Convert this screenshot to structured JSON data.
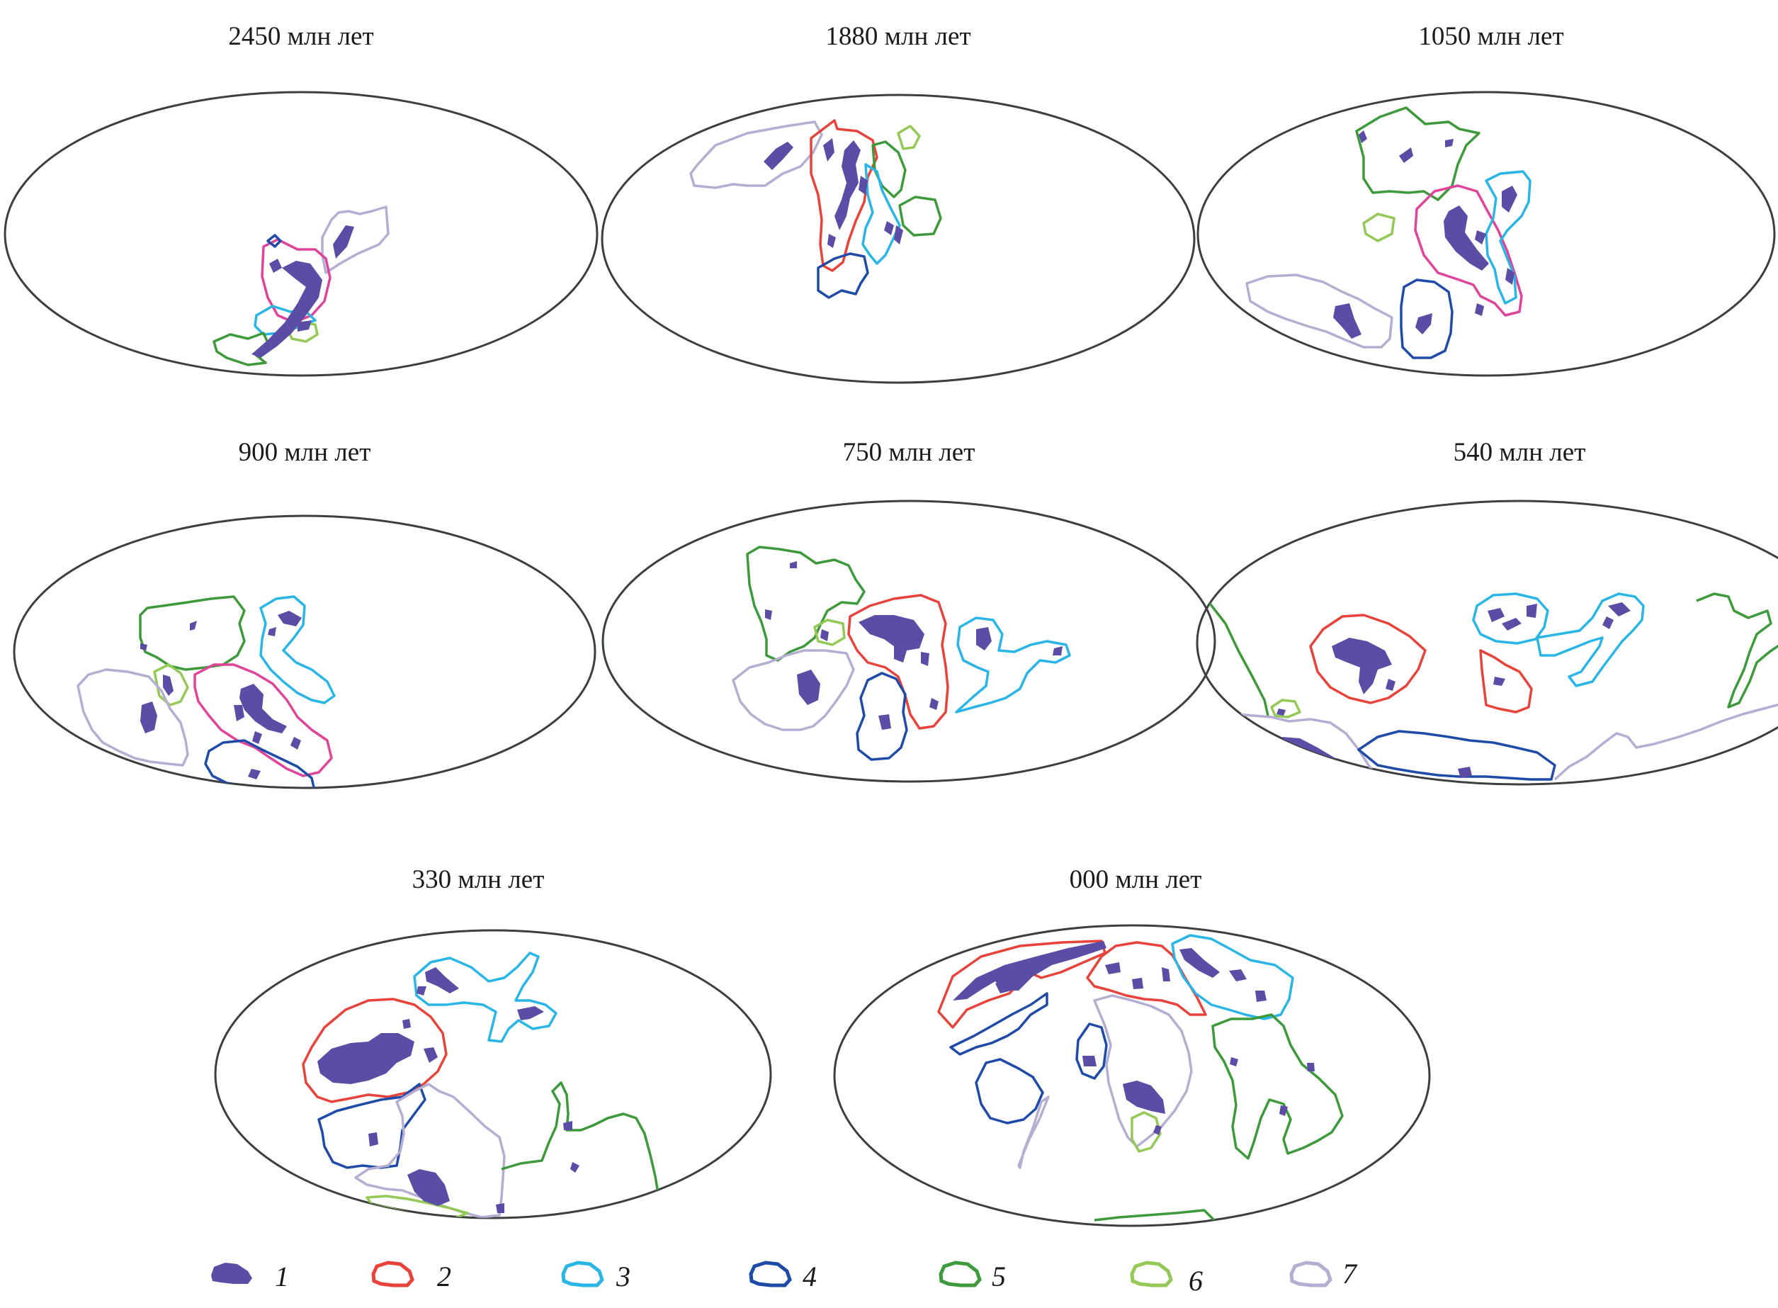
{
  "panels": [
    {
      "title": "2450 млн лет"
    },
    {
      "title": "1880 млн лет"
    },
    {
      "title": "1050 млн лет"
    },
    {
      "title": "900 млн лет"
    },
    {
      "title": "750 млн лет"
    },
    {
      "title": "540 млн лет"
    },
    {
      "title": "330 млн лет"
    },
    {
      "title": "000 млн лет"
    }
  ],
  "legend": [
    {
      "label": "1",
      "kind": "filled",
      "color": "#5b4ca6"
    },
    {
      "label": "2",
      "kind": "outline",
      "color": "#e8433b"
    },
    {
      "label": "3",
      "kind": "outline",
      "color": "#29b6e6"
    },
    {
      "label": "4",
      "kind": "outline",
      "color": "#1e4aa8"
    },
    {
      "label": "5",
      "kind": "outline",
      "color": "#3d9a3a"
    },
    {
      "label": "6",
      "kind": "outline",
      "color": "#95c955"
    },
    {
      "label": "7",
      "kind": "outline",
      "color": "#b4aed2"
    }
  ],
  "colors": {
    "globe_outline": "#3c3f3f",
    "pink_outline": "#e0449a"
  }
}
